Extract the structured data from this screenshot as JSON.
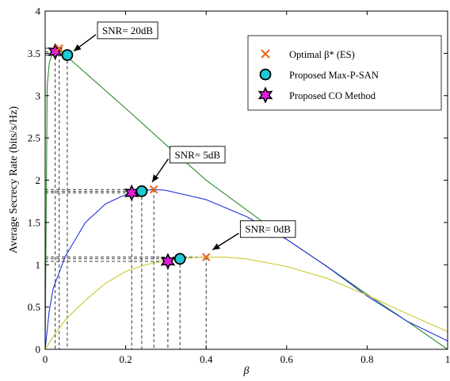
{
  "chart_data": {
    "type": "line",
    "xlabel": "β",
    "ylabel": "Average Secrecy Rate (bits/s/Hz)",
    "xlim": [
      0,
      1
    ],
    "ylim": [
      0,
      4
    ],
    "xticks": [
      0,
      0.2,
      0.4,
      0.6,
      0.8,
      1
    ],
    "yticks": [
      0,
      0.5,
      1,
      1.5,
      2,
      2.5,
      3,
      3.5,
      4
    ],
    "xtick_labels": [
      "0",
      "0.2",
      "0.4",
      "0.6",
      "0.8",
      "1"
    ],
    "ytick_labels": [
      "0",
      "0.5",
      "1",
      "1.5",
      "2",
      "2.5",
      "3",
      "3.5",
      "4"
    ],
    "grid": false,
    "legend_position": "top-right",
    "legend": [
      {
        "label": "Optimal β* (ES)",
        "marker": "x",
        "color": "#e8641b"
      },
      {
        "label": "Proposed Max-P-SAN",
        "marker": "circle",
        "color": "#1ec8d4"
      },
      {
        "label": "Proposed CO Method",
        "marker": "hexagram",
        "color": "#e01ed8"
      }
    ],
    "series": [
      {
        "color": "#2e8b2e",
        "x": [
          0,
          0.005,
          0.01,
          0.02,
          0.03,
          0.05,
          0.1,
          0.2,
          0.3,
          0.4,
          0.5,
          0.6,
          0.7,
          0.8,
          0.9,
          1.0
        ],
        "y": [
          0,
          3.1,
          3.38,
          3.54,
          3.55,
          3.48,
          3.27,
          2.85,
          2.42,
          2.0,
          1.65,
          1.3,
          0.98,
          0.65,
          0.33,
          0
        ]
      },
      {
        "color": "#2233dd",
        "x": [
          0,
          0.01,
          0.02,
          0.05,
          0.1,
          0.15,
          0.2,
          0.25,
          0.27,
          0.3,
          0.4,
          0.5,
          0.6,
          0.7,
          0.8,
          0.9,
          1.0
        ],
        "y": [
          0,
          0.45,
          0.72,
          1.1,
          1.5,
          1.72,
          1.83,
          1.88,
          1.89,
          1.88,
          1.77,
          1.57,
          1.3,
          0.98,
          0.63,
          0.33,
          0.1
        ]
      },
      {
        "color": "#c8c832",
        "x": [
          0,
          0.02,
          0.05,
          0.1,
          0.15,
          0.2,
          0.25,
          0.3,
          0.35,
          0.4,
          0.45,
          0.5,
          0.6,
          0.7,
          0.8,
          0.9,
          1.0
        ],
        "y": [
          0,
          0.15,
          0.35,
          0.58,
          0.78,
          0.92,
          1.0,
          1.05,
          1.08,
          1.09,
          1.09,
          1.07,
          0.98,
          0.84,
          0.64,
          0.42,
          0.21
        ]
      }
    ],
    "markers": {
      "optimal_es": [
        {
          "x": 0.035,
          "y": 3.56
        },
        {
          "x": 0.27,
          "y": 1.89
        },
        {
          "x": 0.4,
          "y": 1.09
        }
      ],
      "max_p_san": [
        {
          "x": 0.055,
          "y": 3.48
        },
        {
          "x": 0.24,
          "y": 1.87
        },
        {
          "x": 0.335,
          "y": 1.07
        }
      ],
      "co_method": [
        {
          "x": 0.025,
          "y": 3.52
        },
        {
          "x": 0.215,
          "y": 1.85
        },
        {
          "x": 0.305,
          "y": 1.04
        }
      ]
    },
    "annotations": [
      {
        "text": "SNR= 20dB",
        "target_x": 0.055,
        "target_y": 3.48,
        "box_x": 0.13,
        "box_y": 3.87
      },
      {
        "text": "SNR= 5dB",
        "target_x": 0.25,
        "target_y": 1.93,
        "box_x": 0.31,
        "box_y": 2.4
      },
      {
        "text": "SNR= 0dB",
        "target_x": 0.4,
        "target_y": 1.13,
        "box_x": 0.485,
        "box_y": 1.52
      }
    ]
  }
}
